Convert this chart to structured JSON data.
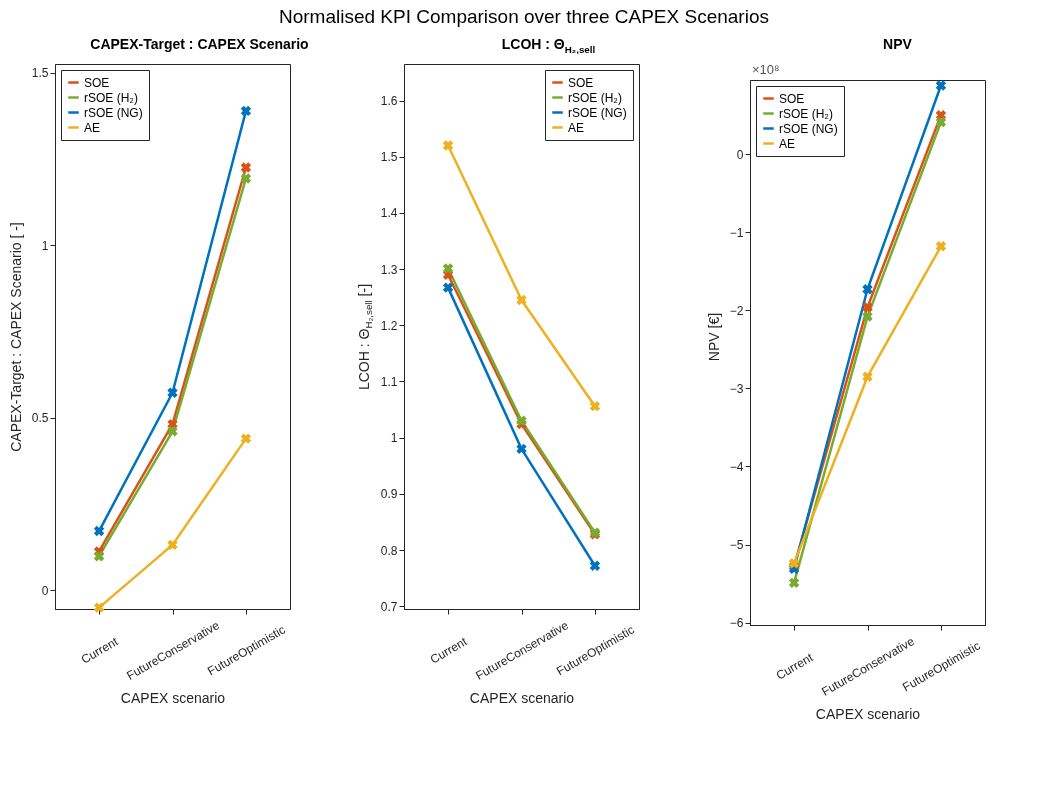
{
  "chart_data": [
    {
      "type": "other",
      "title": "Normalised KPI Comparison over three CAPEX Scenarios"
    },
    {
      "type": "line",
      "title": "CAPEX-Target : CAPEX Scenario",
      "xlabel": "CAPEX scenario",
      "ylabel": "CAPEX-Target : CAPEX Scenario [ -]",
      "categories": [
        "Current",
        "FutureConservative",
        "FutureOptimistic"
      ],
      "series": [
        {
          "name": "SOE",
          "color": "#d95319",
          "values": [
            0.112,
            0.481,
            1.225
          ]
        },
        {
          "name": "rSOE (H₂)",
          "color": "#77ac30",
          "values": [
            0.098,
            0.46,
            1.193
          ]
        },
        {
          "name": "rSOE (NG)",
          "color": "#0072bd",
          "values": [
            0.171,
            0.572,
            1.389
          ]
        },
        {
          "name": "AE",
          "color": "#edb120",
          "values": [
            -0.051,
            0.131,
            0.439
          ]
        }
      ],
      "ylim": [
        -0.055,
        1.525
      ],
      "yticks": [
        0,
        0.5,
        1,
        1.5
      ],
      "legend": "top left",
      "marker": "cross",
      "line_style": "solid"
    },
    {
      "type": "line",
      "title": "LCOH : Θ$_{H₂,sell}$",
      "xlabel": "CAPEX scenario",
      "ylabel": "LCOH : Θ$_{H₂,sell}$ [-]",
      "categories": [
        "Current",
        "FutureConservative",
        "FutureOptimistic"
      ],
      "series": [
        {
          "name": "SOE",
          "color": "#d95319",
          "values": [
            1.29,
            1.024,
            0.828
          ]
        },
        {
          "name": "rSOE (H₂)",
          "color": "#77ac30",
          "values": [
            1.301,
            1.03,
            0.831
          ]
        },
        {
          "name": "rSOE (NG)",
          "color": "#0072bd",
          "values": [
            1.267,
            0.98,
            0.772
          ]
        },
        {
          "name": "AE",
          "color": "#edb120",
          "values": [
            1.52,
            1.245,
            1.056
          ]
        }
      ],
      "ylim": [
        0.695,
        1.665
      ],
      "yticks": [
        0.7,
        0.8,
        0.9,
        1,
        1.1,
        1.2,
        1.3,
        1.4,
        1.5,
        1.6
      ],
      "legend": "top right",
      "marker": "cross",
      "line_style": "solid"
    },
    {
      "type": "line",
      "title": "NPV",
      "xlabel": "CAPEX scenario",
      "ylabel": "NPV [€]",
      "annotations": [
        "×10⁸"
      ],
      "categories": [
        "Current",
        "FutureConservative",
        "FutureOptimistic"
      ],
      "series": [
        {
          "name": "SOE",
          "color": "#d95319",
          "values": [
            -5.28,
            -1.96,
            0.5
          ]
        },
        {
          "name": "rSOE (H₂)",
          "color": "#77ac30",
          "values": [
            -5.49,
            -2.08,
            0.41
          ]
        },
        {
          "name": "rSOE (NG)",
          "color": "#0072bd",
          "values": [
            -5.31,
            -1.73,
            0.88
          ]
        },
        {
          "name": "AE",
          "color": "#edb120",
          "values": [
            -5.24,
            -2.85,
            -1.18
          ]
        }
      ],
      "ylim": [
        -6.03,
        0.95
      ],
      "yticks": [
        -6,
        -5,
        -4,
        -3,
        -2,
        -1,
        0
      ],
      "legend": "top left",
      "marker": "cross",
      "line_style": "solid"
    }
  ]
}
